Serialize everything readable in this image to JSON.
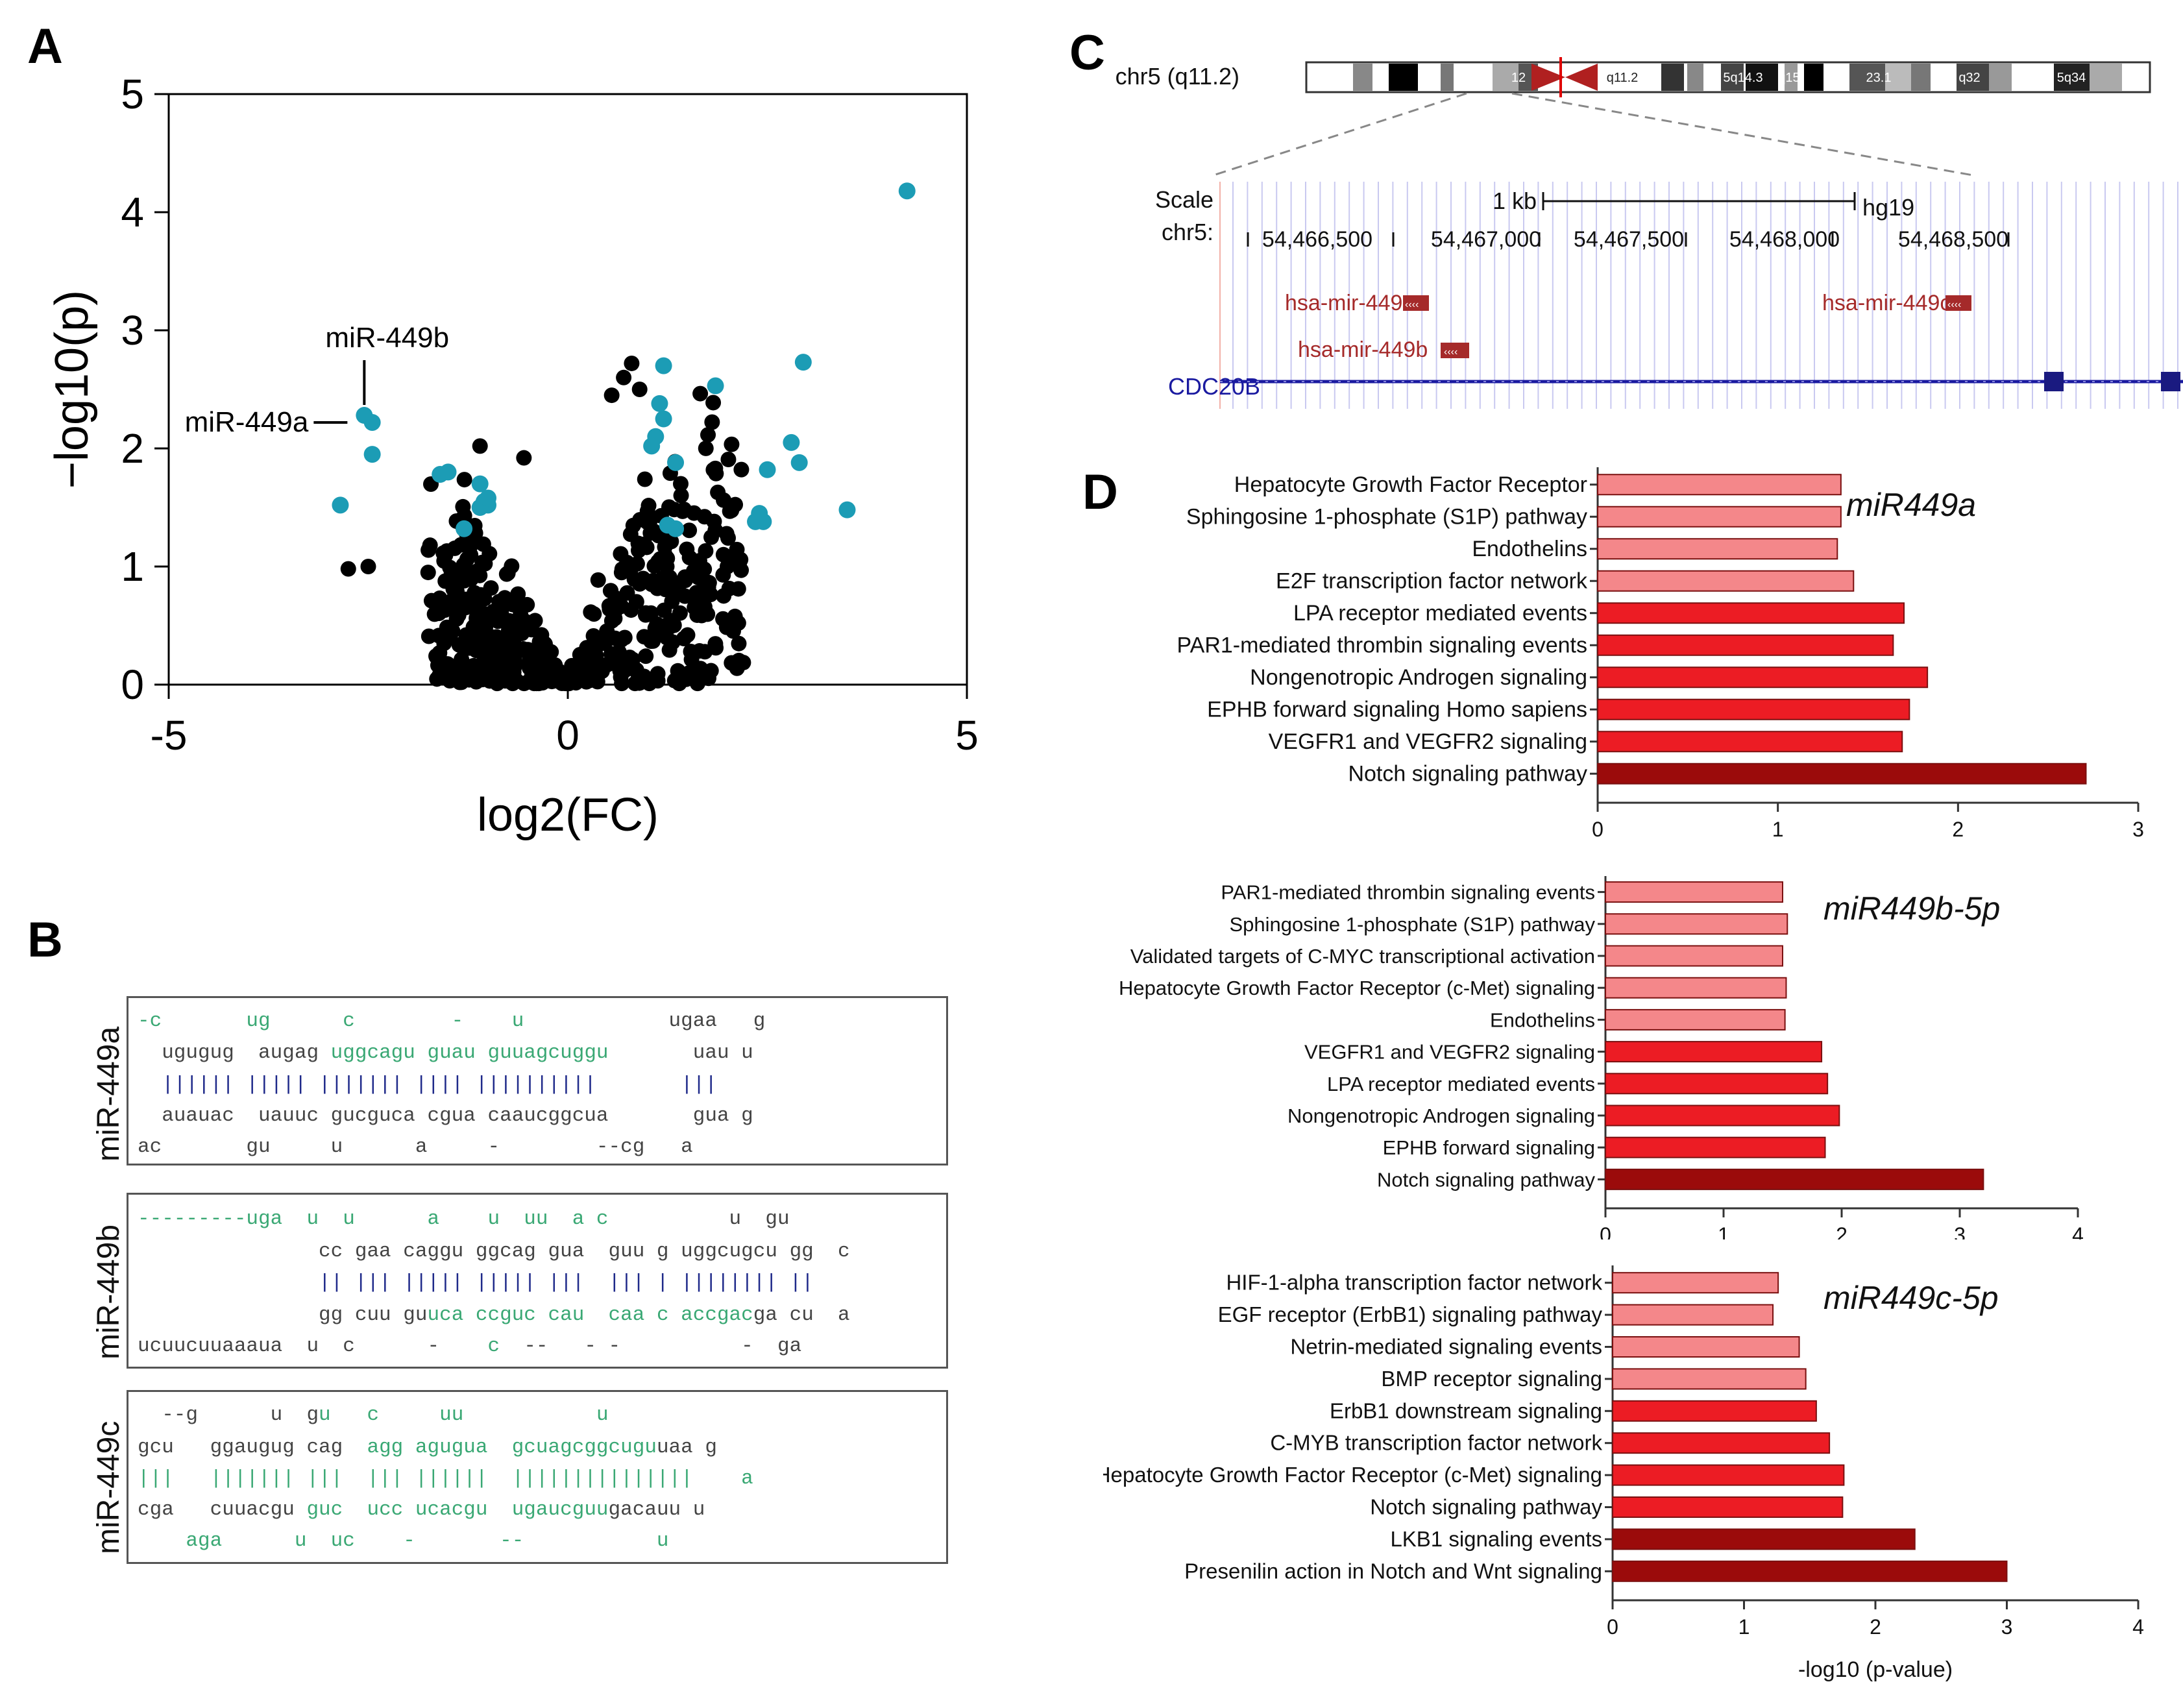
{
  "panels": {
    "A": "A",
    "B": "B",
    "C": "C",
    "D": "D"
  },
  "colors": {
    "black_point": "#000000",
    "teal_point": "#1c9cb5",
    "bar_light": "#f4878a",
    "bar_mid": "#ec1c24",
    "bar_dark": "#9b0b0b",
    "ucsc_red": "#a52a2a",
    "ucsc_blue": "#1a1aa0"
  },
  "chart_data": [
    {
      "id": "volcano",
      "type": "scatter",
      "xlabel": "log2(FC)",
      "ylabel": "−log10(p)",
      "xlim": [
        -5,
        5
      ],
      "ylim": [
        0,
        5
      ],
      "xticks": [
        "-5",
        "0",
        "5"
      ],
      "yticks": [
        "0",
        "1",
        "2",
        "3",
        "4",
        "5"
      ],
      "annotations": [
        {
          "label": "miR-449b",
          "x": -2.45,
          "y": 2.28
        },
        {
          "label": "miR-449a",
          "x": -2.55,
          "y": 2.22
        }
      ],
      "series": [
        {
          "name": "significant",
          "color": "#1c9cb5",
          "points": [
            [
              4.25,
              4.18
            ],
            [
              -2.55,
              2.28
            ],
            [
              -2.45,
              2.22
            ],
            [
              -2.45,
              1.95
            ],
            [
              -2.85,
              1.52
            ],
            [
              -1.6,
              1.78
            ],
            [
              -1.5,
              1.8
            ],
            [
              -1.1,
              1.7
            ],
            [
              -1.05,
              1.55
            ],
            [
              -1.0,
              1.52
            ],
            [
              -1.1,
              1.5
            ],
            [
              -1.0,
              1.58
            ],
            [
              -1.3,
              1.32
            ],
            [
              1.2,
              2.7
            ],
            [
              1.15,
              2.38
            ],
            [
              1.2,
              2.25
            ],
            [
              1.1,
              2.1
            ],
            [
              1.05,
              2.02
            ],
            [
              1.35,
              1.88
            ],
            [
              1.25,
              1.35
            ],
            [
              1.35,
              1.32
            ],
            [
              1.85,
              2.53
            ],
            [
              2.95,
              2.73
            ],
            [
              2.8,
              2.05
            ],
            [
              2.9,
              1.88
            ],
            [
              2.5,
              1.82
            ],
            [
              2.4,
              1.45
            ],
            [
              2.35,
              1.38
            ],
            [
              2.45,
              1.38
            ],
            [
              3.5,
              1.48
            ]
          ]
        }
      ]
    },
    {
      "id": "miR449a",
      "type": "bar",
      "orientation": "horizontal",
      "title": "miR449a",
      "categories": [
        "Hepatocyte Growth Factor Receptor",
        "Sphingosine 1-phosphate (S1P) pathway",
        "Endothelins",
        "E2F transcription factor network",
        "LPA receptor mediated events",
        "PAR1-mediated thrombin signaling events",
        "Nongenotropic Androgen signaling",
        "EPHB forward signaling Homo sapiens",
        "VEGFR1 and VEGFR2 signaling",
        "Notch signaling pathway"
      ],
      "values": [
        1.35,
        1.35,
        1.33,
        1.42,
        1.7,
        1.64,
        1.83,
        1.73,
        1.69,
        2.71
      ],
      "levels": [
        "light",
        "light",
        "light",
        "light",
        "mid",
        "mid",
        "mid",
        "mid",
        "mid",
        "dark"
      ],
      "xlim": [
        0,
        3
      ],
      "xticks": [
        "0",
        "1",
        "2",
        "3"
      ]
    },
    {
      "id": "miR449b",
      "type": "bar",
      "orientation": "horizontal",
      "title": "miR449b-5p",
      "categories": [
        "PAR1-mediated thrombin signaling events",
        "Sphingosine 1-phosphate (S1P) pathway",
        "Validated targets of C-MYC transcriptional activation",
        "Hepatocyte Growth Factor Receptor (c-Met) signaling",
        "Endothelins",
        "VEGFR1 and VEGFR2 signaling",
        "LPA receptor mediated events",
        "Nongenotropic Androgen signaling",
        "EPHB forward signaling",
        "Notch signaling pathway"
      ],
      "values": [
        1.5,
        1.54,
        1.5,
        1.53,
        1.52,
        1.83,
        1.88,
        1.98,
        1.86,
        3.2
      ],
      "levels": [
        "light",
        "light",
        "light",
        "light",
        "light",
        "mid",
        "mid",
        "mid",
        "mid",
        "dark"
      ],
      "xlim": [
        0,
        4
      ],
      "xticks": [
        "0",
        "1",
        "2",
        "3",
        "4"
      ]
    },
    {
      "id": "miR449c",
      "type": "bar",
      "orientation": "horizontal",
      "title": "miR449c-5p",
      "xlabel": "-log10 (p-value)",
      "categories": [
        "HIF-1-alpha transcription factor network",
        "EGF receptor (ErbB1) signaling pathway",
        "Netrin-mediated signaling events",
        "BMP receptor signaling",
        "ErbB1 downstream signaling",
        "C-MYB transcription factor network",
        "Hepatocyte Growth Factor Receptor (c-Met) signaling",
        "Notch signaling pathway",
        "LKB1 signaling events",
        "Presenilin action in Notch and Wnt signaling"
      ],
      "values": [
        1.26,
        1.22,
        1.42,
        1.47,
        1.55,
        1.65,
        1.76,
        1.75,
        2.3,
        3.0
      ],
      "levels": [
        "light",
        "light",
        "light",
        "light",
        "mid",
        "mid",
        "mid",
        "mid",
        "dark",
        "dark"
      ],
      "xlim": [
        0,
        4
      ],
      "xticks": [
        "0",
        "1",
        "2",
        "3",
        "4"
      ]
    }
  ],
  "hairpins": {
    "a": {
      "label": "miR-449a",
      "lines": [
        "[[-c       ug      c        -    ]][[u]][[            ugaa   g]]",
        "[[  ugugug  augag ]][[uggcagu guau guuagcuggu]][[       uau u]]",
        "[[  |||||| ||||| ||||||| |||| ||||||||||       |||]]",
        "[[  auauac  uauuc gucguca cgua caaucggcua       gua g]]",
        "[[ac       gu     u      a     -        --cg   a]]"
      ]
    },
    "b": {
      "label": "miR-449b",
      "lines": [
        "[[---------uga  u  u   ]][[   a    u  uu  a c]][[          u  gu]]",
        "[[               cc gaa caggu ]][[ggcag gua  guu g uggc]][[ugcu gg  c]]",
        "[[               || ||| ||||| ||||| |||  ||| | |||||||| ||]]",
        "[[               gg cuu gu]][[uca ccguc cau  caa c accgac]][[ga cu  a]]",
        "[[ucuucuuaaaua  u  c      -    ]][[c]][[  --   - -          -  ga]]"
      ]
    },
    "c": {
      "label": "miR-449c",
      "lines": [
        "[[  --g      u  g]][[u]][[   ]][[c]][[     ]][[uu]][[           u]]",
        "[[gcu   ggaugug cag  ]][[agg agugua  gcuagcggcugu]][[uaa g]]",
        "[[|||   ||||||| |||  ||| ||||||  |||||||||||||||    a]]",
        "[[cga   cuuacgu ]][[guc  ucc ucacgu  ugaucguu]][[gacauu u]]",
        "[[    aga      ]][[u  uc]][[    -       --           u]]"
      ]
    }
  },
  "genome": {
    "chrom_label": "chr5 (q11.2)",
    "bands": [
      "12",
      "q11.2",
      "5q14.3",
      "q15",
      "23.1",
      "q32",
      "5q34"
    ],
    "scale_label": "Scale",
    "chr_label": "chr5:",
    "scalebar_label": "1 kb",
    "assembly": "hg19",
    "positions": [
      "54,466,500",
      "54,467,000",
      "54,467,500",
      "54,468,000",
      "54,468,500"
    ],
    "genes": [
      "hsa-mir-449a",
      "hsa-mir-449b",
      "hsa-mir-449c",
      "CDC20B"
    ]
  }
}
